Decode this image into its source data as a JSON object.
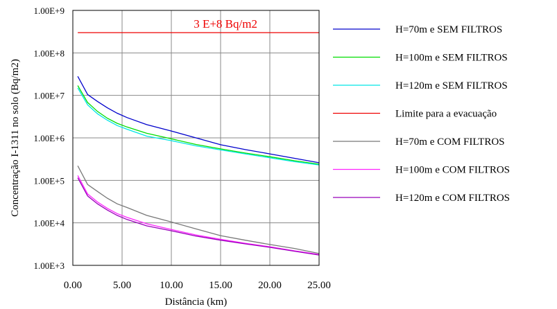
{
  "chart_data": {
    "type": "line",
    "title": "",
    "xlabel": "Distância (km)",
    "ylabel": "Concentração I-1311 no solo (Bq/m2)",
    "xlim": [
      0,
      25
    ],
    "ylim": [
      1000,
      1000000000
    ],
    "y_scale": "log",
    "grid": true,
    "legend_position": "right",
    "x_ticks": [
      "0.00",
      "5.00",
      "10.00",
      "15.00",
      "20.00",
      "25.00"
    ],
    "x_tick_values": [
      0,
      5,
      10,
      15,
      20,
      25
    ],
    "y_ticks": [
      "1.00E+3",
      "1.00E+4",
      "1.00E+5",
      "1.00E+6",
      "1.00E+7",
      "1.00E+8",
      "1.00E+9"
    ],
    "y_tick_values": [
      1000,
      10000,
      100000,
      1000000,
      10000000,
      100000000,
      1000000000
    ],
    "annotation": {
      "text": "3 E+8 Bq/m2",
      "x": 15.5,
      "y": 300000000
    },
    "series": [
      {
        "name": "H=70m e SEM FILTROS",
        "color": "#0000cc",
        "x": [
          0.5,
          1.5,
          2.5,
          3.5,
          4.5,
          5.5,
          7.5,
          10,
          12.5,
          15,
          17.5,
          20,
          22.5,
          25
        ],
        "y": [
          28000000,
          10500000,
          7200000,
          5100000,
          3800000,
          3000000,
          2050000,
          1450000,
          1000000,
          690000,
          530000,
          420000,
          330000,
          260000
        ]
      },
      {
        "name": "H=100m e SEM FILTROS",
        "color": "#00dd00",
        "x": [
          0.5,
          1.5,
          2.5,
          3.5,
          4.5,
          5.5,
          7.5,
          10,
          12.5,
          15,
          17.5,
          20,
          22.5,
          25
        ],
        "y": [
          17000000,
          6800000,
          4200000,
          2900000,
          2200000,
          1800000,
          1280000,
          950000,
          700000,
          550000,
          440000,
          360000,
          290000,
          240000
        ]
      },
      {
        "name": "H=120m e SEM FILTROS",
        "color": "#00e5e5",
        "x": [
          0.5,
          1.5,
          2.5,
          3.5,
          4.5,
          5.5,
          7.5,
          10,
          12.5,
          15,
          17.5,
          20,
          22.5,
          25
        ],
        "y": [
          15000000,
          6000000,
          3700000,
          2600000,
          1950000,
          1600000,
          1100000,
          860000,
          650000,
          520000,
          420000,
          340000,
          275000,
          230000
        ]
      },
      {
        "name": "Limite para a evacuação",
        "color": "#ee0000",
        "x": [
          0.5,
          25
        ],
        "y": [
          300000000,
          300000000
        ]
      },
      {
        "name": "H=70m e COM FILTROS",
        "color": "#777777",
        "x": [
          0.5,
          1.5,
          2.5,
          3.5,
          4.5,
          5.5,
          7.5,
          10,
          12.5,
          15,
          17.5,
          20,
          22.5,
          25
        ],
        "y": [
          220000,
          80000,
          55000,
          38000,
          28000,
          23000,
          15000,
          10500,
          7200,
          5000,
          3900,
          3100,
          2500,
          1900
        ]
      },
      {
        "name": "H=100m e COM FILTROS",
        "color": "#ff22ff",
        "x": [
          0.5,
          1.5,
          2.5,
          3.5,
          4.5,
          5.5,
          7.5,
          10,
          12.5,
          15,
          17.5,
          20,
          22.5,
          25
        ],
        "y": [
          130000,
          48000,
          31000,
          22000,
          16500,
          13500,
          9500,
          7000,
          5200,
          4100,
          3300,
          2750,
          2200,
          1800
        ]
      },
      {
        "name": "H=120m e COM FILTROS",
        "color": "#9900bb",
        "x": [
          0.5,
          1.5,
          2.5,
          3.5,
          4.5,
          5.5,
          7.5,
          10,
          12.5,
          15,
          17.5,
          20,
          22.5,
          25
        ],
        "y": [
          115000,
          43000,
          28000,
          20000,
          15000,
          12000,
          8500,
          6500,
          4900,
          3900,
          3200,
          2650,
          2150,
          1750
        ]
      }
    ]
  }
}
